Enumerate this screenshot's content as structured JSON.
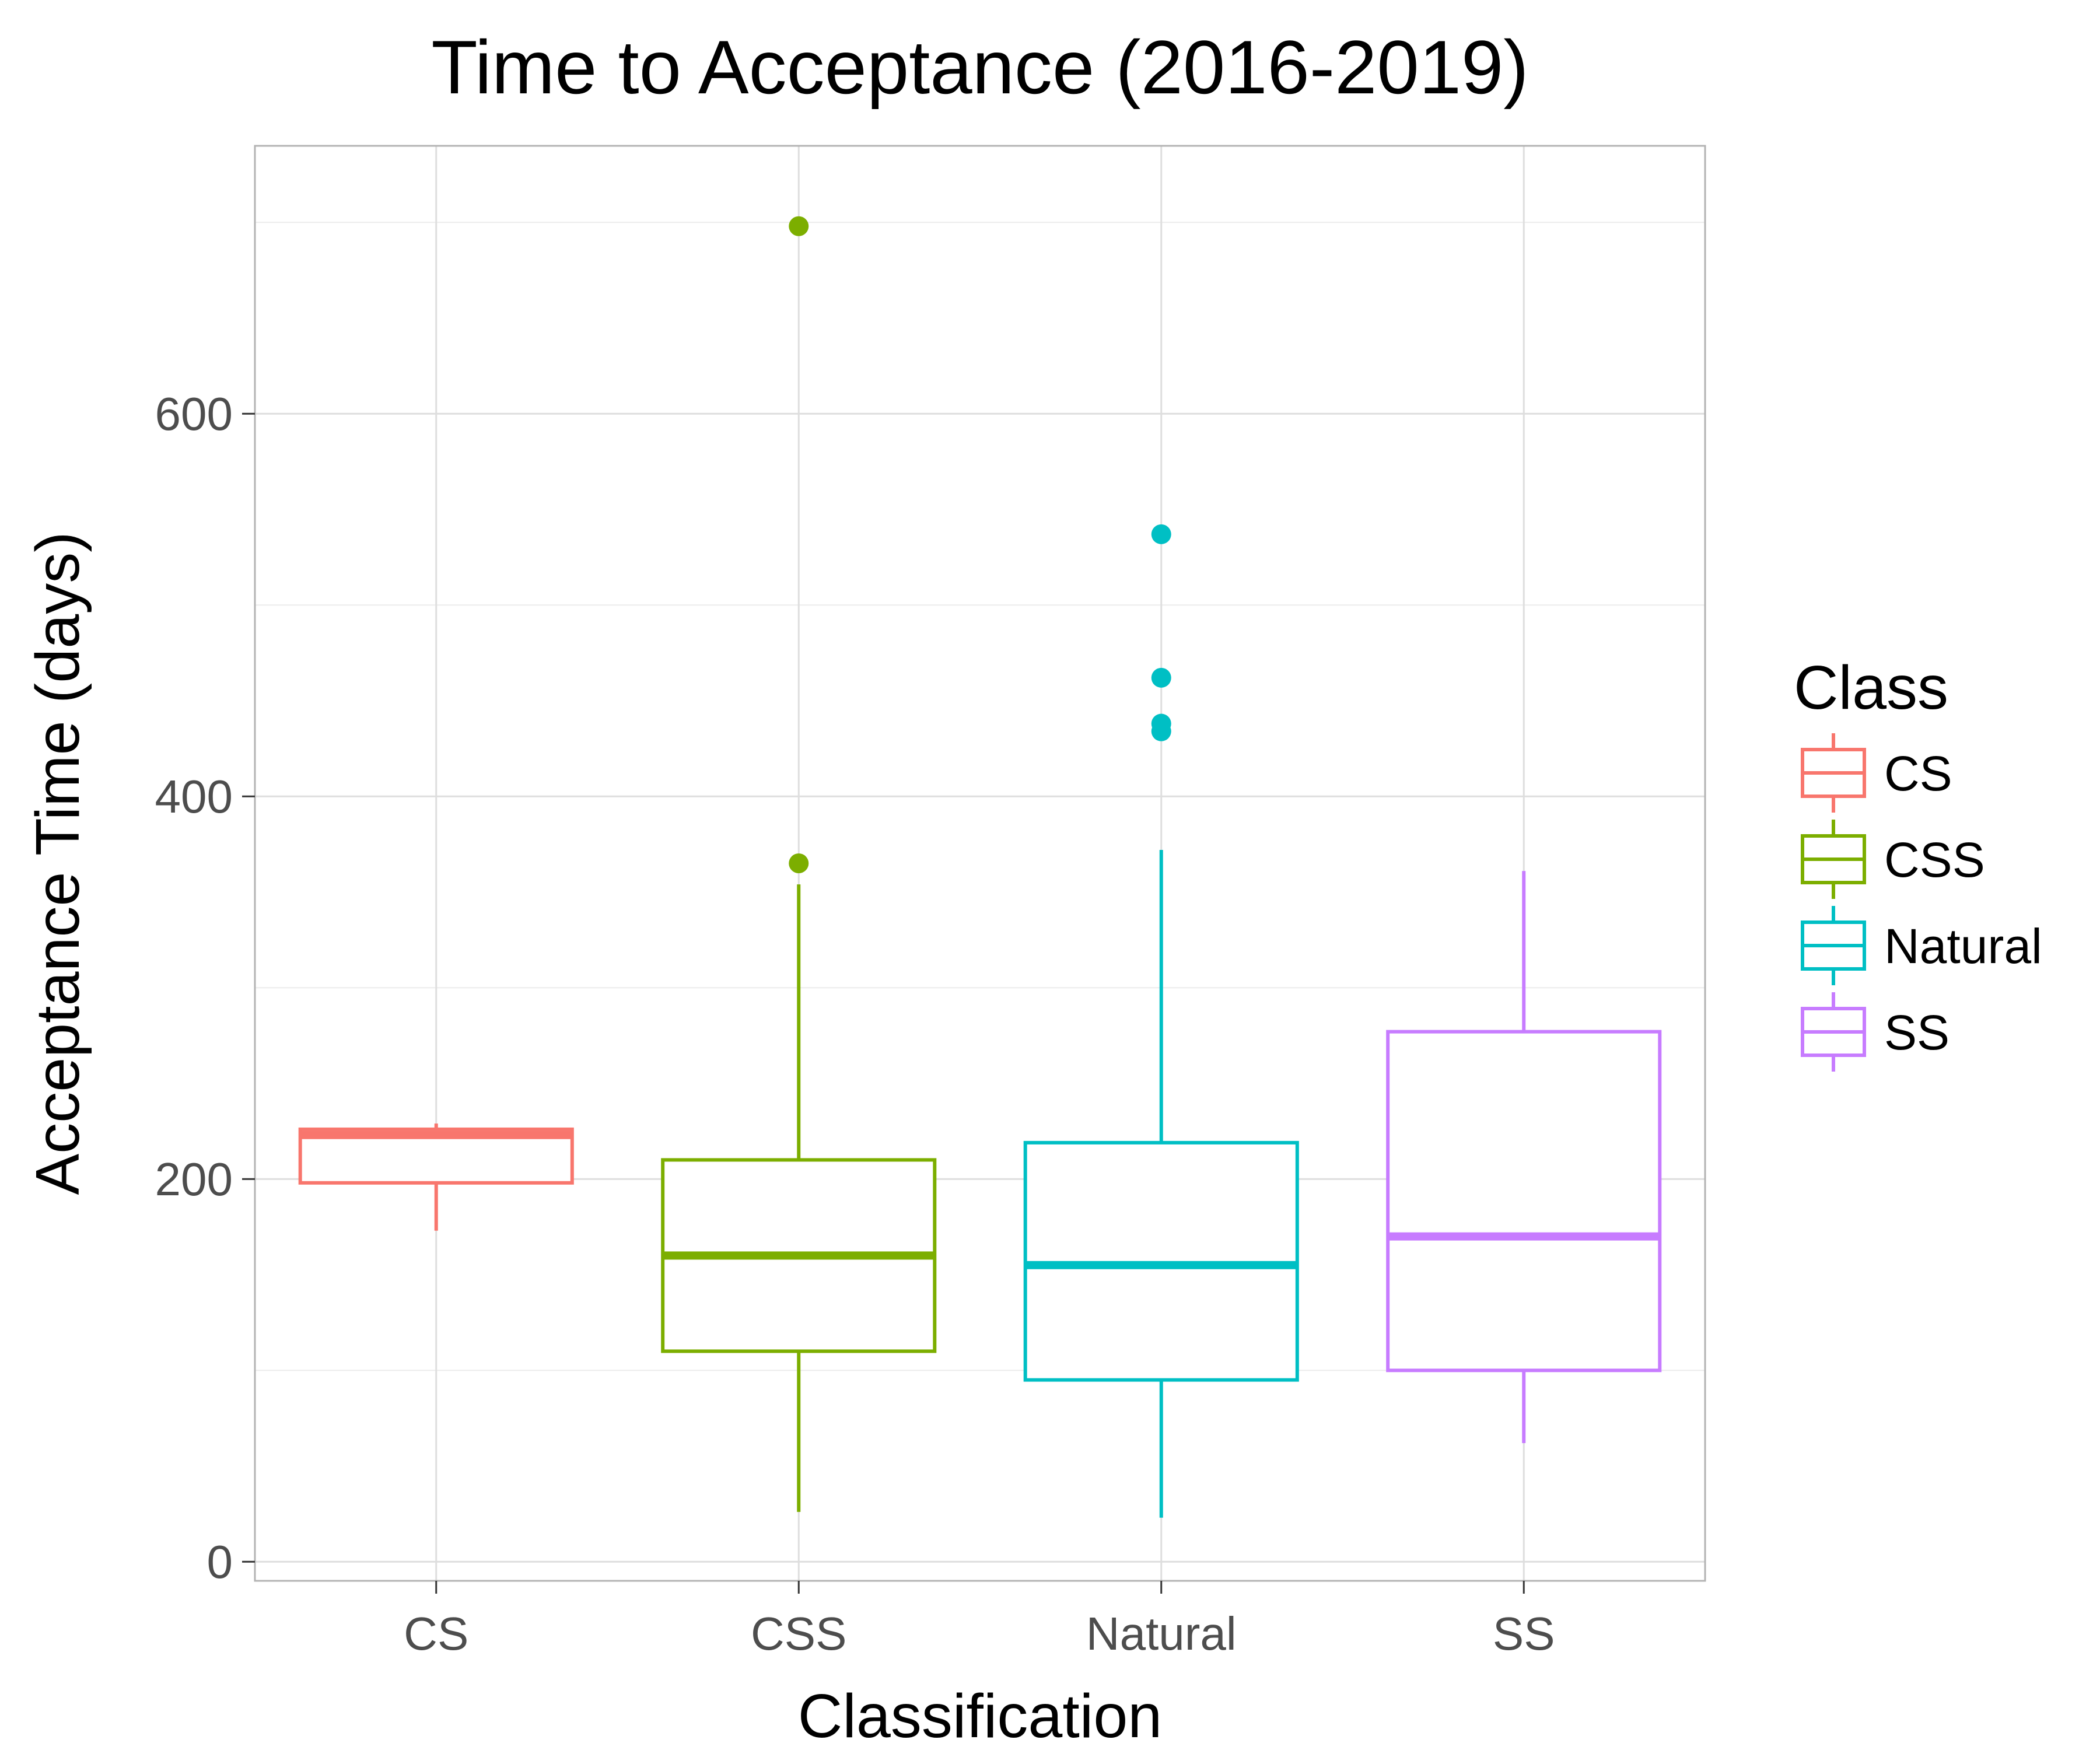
{
  "chart_data": {
    "type": "boxplot",
    "title": "Time to Acceptance (2016-2019)",
    "xlabel": "Classification",
    "ylabel": "Acceptance Time (days)",
    "ylim": [
      -10,
      740
    ],
    "yticks": [
      0,
      200,
      400,
      600
    ],
    "yminor": [
      100,
      300,
      500,
      700
    ],
    "grid": true,
    "legend": {
      "title": "Class",
      "position": "right"
    },
    "categories": [
      "CS",
      "CSS",
      "Natural",
      "SS"
    ],
    "series": [
      {
        "name": "CS",
        "color": "#F8766D",
        "whisker_low": 173,
        "q1": 198,
        "median": 223,
        "q3": 226,
        "whisker_high": 229,
        "outliers": []
      },
      {
        "name": "CSS",
        "color": "#7CAE00",
        "whisker_low": 26,
        "q1": 110,
        "median": 160,
        "q3": 210,
        "whisker_high": 354,
        "outliers": [
          365,
          698
        ]
      },
      {
        "name": "Natural",
        "color": "#00BFC4",
        "whisker_low": 23,
        "q1": 95,
        "median": 155,
        "q3": 219,
        "whisker_high": 372,
        "outliers": [
          434,
          438,
          462,
          537
        ]
      },
      {
        "name": "SS",
        "color": "#C77CFF",
        "whisker_low": 62,
        "q1": 100,
        "median": 170,
        "q3": 277,
        "whisker_high": 361,
        "outliers": []
      }
    ]
  }
}
